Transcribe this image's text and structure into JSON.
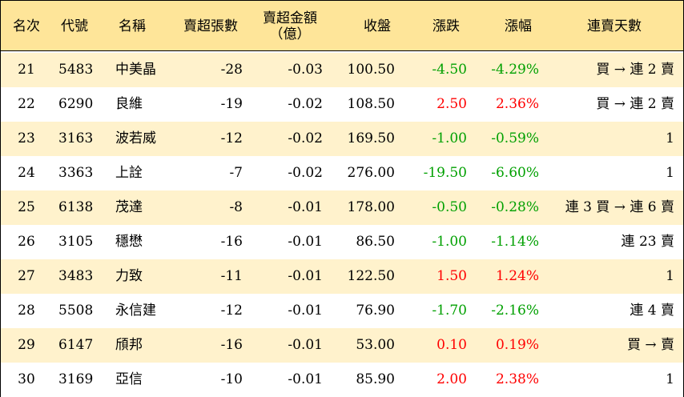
{
  "headers": {
    "rank": "名次",
    "code": "代號",
    "name": "名稱",
    "net_sell_lots": "賣超張數",
    "net_sell_amount_line1": "賣超金額",
    "net_sell_amount_line2": "（億）",
    "close": "收盤",
    "change": "漲跌",
    "change_pct": "漲幅",
    "consecutive_sell_days": "連賣天數"
  },
  "rows": [
    {
      "rank": "21",
      "code": "5483",
      "name": "中美晶",
      "lots": "-28",
      "amount": "-0.03",
      "close": "100.50",
      "change": "-4.50",
      "pct": "-4.29%",
      "trend": "down",
      "streak": "買 → 連 2 賣"
    },
    {
      "rank": "22",
      "code": "6290",
      "name": "良維",
      "lots": "-19",
      "amount": "-0.02",
      "close": "108.50",
      "change": "2.50",
      "pct": "2.36%",
      "trend": "up",
      "streak": "買 → 連 2 賣"
    },
    {
      "rank": "23",
      "code": "3163",
      "name": "波若威",
      "lots": "-12",
      "amount": "-0.02",
      "close": "169.50",
      "change": "-1.00",
      "pct": "-0.59%",
      "trend": "down",
      "streak": "1"
    },
    {
      "rank": "24",
      "code": "3363",
      "name": "上詮",
      "lots": "-7",
      "amount": "-0.02",
      "close": "276.00",
      "change": "-19.50",
      "pct": "-6.60%",
      "trend": "down",
      "streak": "1"
    },
    {
      "rank": "25",
      "code": "6138",
      "name": "茂達",
      "lots": "-8",
      "amount": "-0.01",
      "close": "178.00",
      "change": "-0.50",
      "pct": "-0.28%",
      "trend": "down",
      "streak": "連 3 買 → 連 6 賣"
    },
    {
      "rank": "26",
      "code": "3105",
      "name": "穩懋",
      "lots": "-16",
      "amount": "-0.01",
      "close": "86.50",
      "change": "-1.00",
      "pct": "-1.14%",
      "trend": "down",
      "streak": "連 23 賣"
    },
    {
      "rank": "27",
      "code": "3483",
      "name": "力致",
      "lots": "-11",
      "amount": "-0.01",
      "close": "122.50",
      "change": "1.50",
      "pct": "1.24%",
      "trend": "up",
      "streak": "1"
    },
    {
      "rank": "28",
      "code": "5508",
      "name": "永信建",
      "lots": "-12",
      "amount": "-0.01",
      "close": "76.90",
      "change": "-1.70",
      "pct": "-2.16%",
      "trend": "down",
      "streak": "連 4 賣"
    },
    {
      "rank": "29",
      "code": "6147",
      "name": "頎邦",
      "lots": "-16",
      "amount": "-0.01",
      "close": "53.00",
      "change": "0.10",
      "pct": "0.19%",
      "trend": "up",
      "streak": "買 → 賣"
    },
    {
      "rank": "30",
      "code": "3169",
      "name": "亞信",
      "lots": "-10",
      "amount": "-0.01",
      "close": "85.90",
      "change": "2.00",
      "pct": "2.38%",
      "trend": "up",
      "streak": "1"
    }
  ],
  "colors": {
    "header_bg": "#fee599",
    "odd_row_bg": "#fff2cc",
    "even_row_bg": "#ffffff",
    "up": "#ff0000",
    "down": "#00a000"
  }
}
